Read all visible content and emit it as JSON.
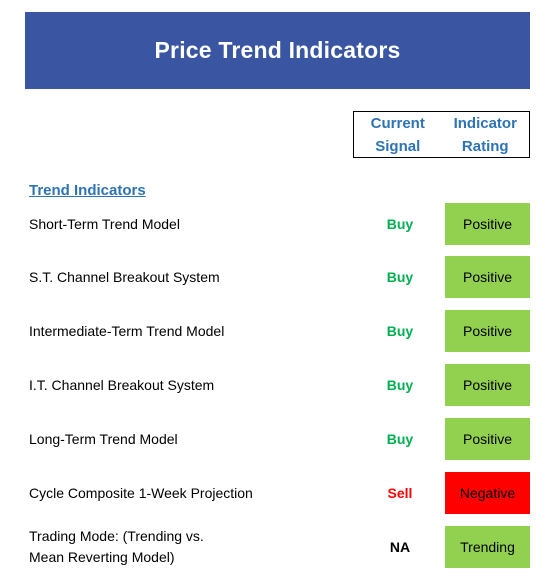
{
  "title": "Price Trend Indicators",
  "headers": {
    "signal": [
      "Current",
      "Signal"
    ],
    "rating": [
      "Indicator",
      "Rating"
    ]
  },
  "section_title": "Trend Indicators",
  "colors": {
    "banner": "#3a56a3",
    "header_text": "#2e74b5",
    "buy": "#00b050",
    "sell": "#ff0000",
    "positive_bg": "#92d050",
    "negative_bg": "#ff0000",
    "neutral": "#000000"
  },
  "rows": [
    {
      "name": "Short-Term Trend Model",
      "signal": "Buy",
      "rating": "Positive",
      "status": "positive"
    },
    {
      "name": "S.T. Channel Breakout System",
      "signal": "Buy",
      "rating": "Positive",
      "status": "positive"
    },
    {
      "name": "Intermediate-Term Trend Model",
      "signal": "Buy",
      "rating": "Positive",
      "status": "positive"
    },
    {
      "name": "I.T. Channel Breakout System",
      "signal": "Buy",
      "rating": "Positive",
      "status": "positive"
    },
    {
      "name": "Long-Term Trend Model",
      "signal": "Buy",
      "rating": "Positive",
      "status": "positive"
    },
    {
      "name": "Cycle Composite 1-Week Projection",
      "signal": "Sell",
      "rating": "Negative",
      "status": "negative"
    },
    {
      "name_lines": [
        "Trading Mode: (Trending vs.",
        "Mean Reverting Model)"
      ],
      "signal": "NA",
      "rating": "Trending",
      "status": "neutral"
    }
  ]
}
